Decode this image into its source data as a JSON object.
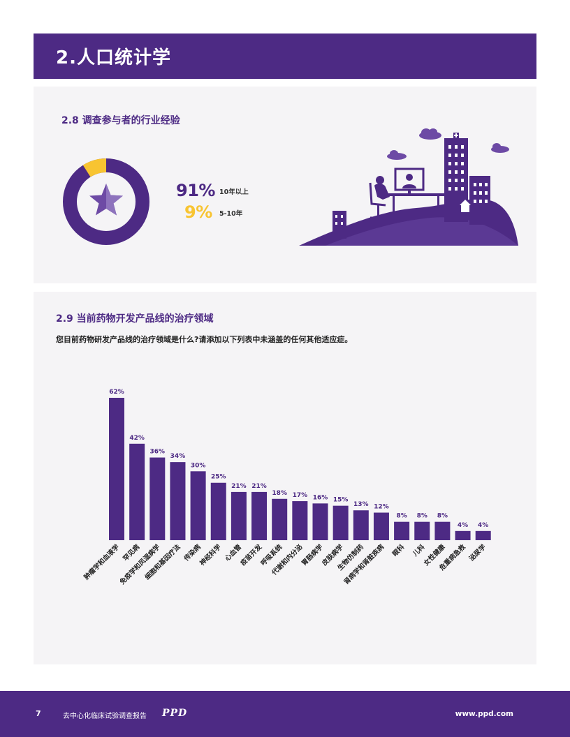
{
  "header": {
    "title": "2.人口统计学"
  },
  "section_28": {
    "title": "2.8 调查参与者的行业经验",
    "stats": [
      {
        "pct": "91%",
        "label": "10年以上",
        "color": "#4d2a84",
        "fraction": 0.91
      },
      {
        "pct": "9%",
        "label": "5-10年",
        "color": "#f8c431",
        "fraction": 0.09
      }
    ]
  },
  "section_29": {
    "title": "2.9 当前药物开发产品线的治疗领域",
    "question": "您目前药物研发产品线的治疗领域是什么?请添加以下列表中未涵盖的任何其他适应症。"
  },
  "chart_data": {
    "type": "bar",
    "categories": [
      "肿瘤学和血液学",
      "罕见病",
      "免疫学和风湿病学",
      "细胞和基因疗法",
      "传染病",
      "神经科学",
      "心血管",
      "疫苗开发",
      "呼吸系统",
      "代谢和内分泌",
      "胃肠病学",
      "皮肤病学",
      "生物仿制药",
      "肾病学和肾脏疾病",
      "眼科",
      "儿科",
      "女性健康",
      "危重病急救",
      "泌尿学"
    ],
    "values": [
      62,
      42,
      36,
      34,
      30,
      25,
      21,
      21,
      18,
      17,
      16,
      15,
      13,
      12,
      8,
      8,
      8,
      4,
      4
    ],
    "value_labels": [
      "62%",
      "42%",
      "36%",
      "34%",
      "30%",
      "25%",
      "21%",
      "21%",
      "18%",
      "17%",
      "16%",
      "15%",
      "13%",
      "12%",
      "8%",
      "8%",
      "8%",
      "4%",
      "4%"
    ],
    "unit": "%",
    "ylim": [
      0,
      62
    ],
    "color": "#4d2a84"
  },
  "footer": {
    "page_number": "7",
    "report_title": "去中心化临床试验调查报告",
    "logo": "PPD",
    "website": "www.ppd.com"
  }
}
